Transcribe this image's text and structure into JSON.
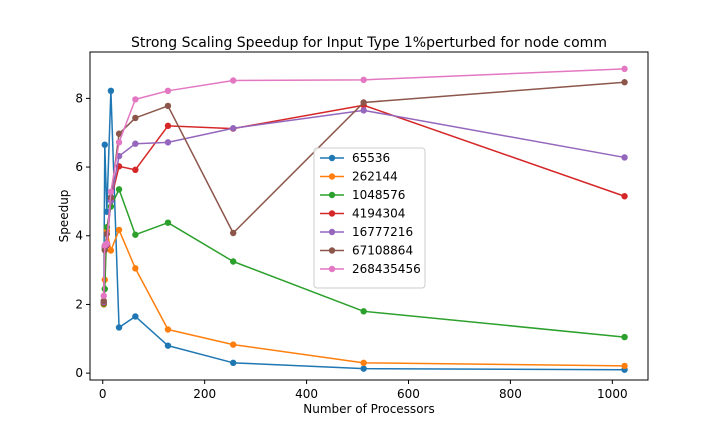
{
  "chart_data": {
    "type": "line",
    "title": "Strong Scaling Speedup for Input Type 1%perturbed for node comm",
    "xlabel": "Number of Processors",
    "ylabel": "Speedup",
    "xlim": [
      -25,
      1070
    ],
    "ylim": [
      -0.2,
      9.35
    ],
    "xticks": [
      0,
      200,
      400,
      600,
      800,
      1000
    ],
    "yticks": [
      0,
      2,
      4,
      6,
      8
    ],
    "grid": false,
    "legend_position": "center",
    "x": [
      2,
      4,
      8,
      16,
      32,
      64,
      128,
      256,
      512,
      1024
    ],
    "series": [
      {
        "name": "65536",
        "color": "#1f77b4",
        "values": [
          2.05,
          6.65,
          4.7,
          8.22,
          1.33,
          1.65,
          0.8,
          0.3,
          0.13,
          0.1
        ]
      },
      {
        "name": "262144",
        "color": "#ff7f0e",
        "values": [
          2.0,
          2.72,
          4.15,
          3.57,
          4.17,
          3.05,
          1.27,
          0.83,
          0.3,
          0.21
        ]
      },
      {
        "name": "1048576",
        "color": "#2ca02c",
        "values": [
          2.02,
          2.45,
          4.25,
          4.85,
          5.35,
          4.03,
          4.38,
          3.25,
          1.8,
          1.05
        ]
      },
      {
        "name": "4194304",
        "color": "#d62728",
        "values": [
          2.05,
          3.68,
          3.72,
          5.05,
          6.02,
          5.92,
          7.2,
          7.12,
          7.8,
          5.15
        ]
      },
      {
        "name": "16777216",
        "color": "#9467bd",
        "values": [
          2.07,
          3.62,
          3.75,
          5.02,
          6.32,
          6.68,
          6.72,
          7.13,
          7.65,
          6.28
        ]
      },
      {
        "name": "67108864",
        "color": "#8c564b",
        "values": [
          2.1,
          3.58,
          4.05,
          5.12,
          6.97,
          7.43,
          7.78,
          4.08,
          7.88,
          8.47
        ]
      },
      {
        "name": "268435456",
        "color": "#e377c2",
        "values": [
          2.25,
          3.72,
          3.77,
          5.28,
          6.72,
          7.97,
          8.22,
          8.52,
          8.54,
          8.86
        ]
      }
    ]
  }
}
